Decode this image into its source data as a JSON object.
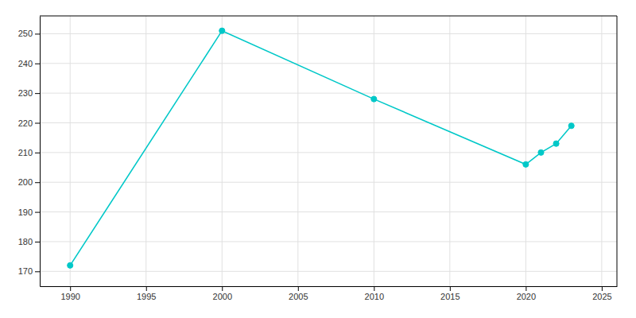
{
  "chart_data": {
    "type": "line",
    "x": [
      1990,
      2000,
      2010,
      2020,
      2021,
      2022,
      2023
    ],
    "values": [
      172,
      251,
      228,
      206,
      210,
      213,
      219
    ],
    "color": "#00C8C8",
    "marker": "circle",
    "xlim": [
      1988,
      2026
    ],
    "ylim": [
      165,
      256
    ],
    "xticks": [
      1990,
      1995,
      2000,
      2005,
      2010,
      2015,
      2020,
      2025
    ],
    "yticks": [
      170,
      180,
      190,
      200,
      210,
      220,
      230,
      240,
      250
    ],
    "grid": true
  }
}
